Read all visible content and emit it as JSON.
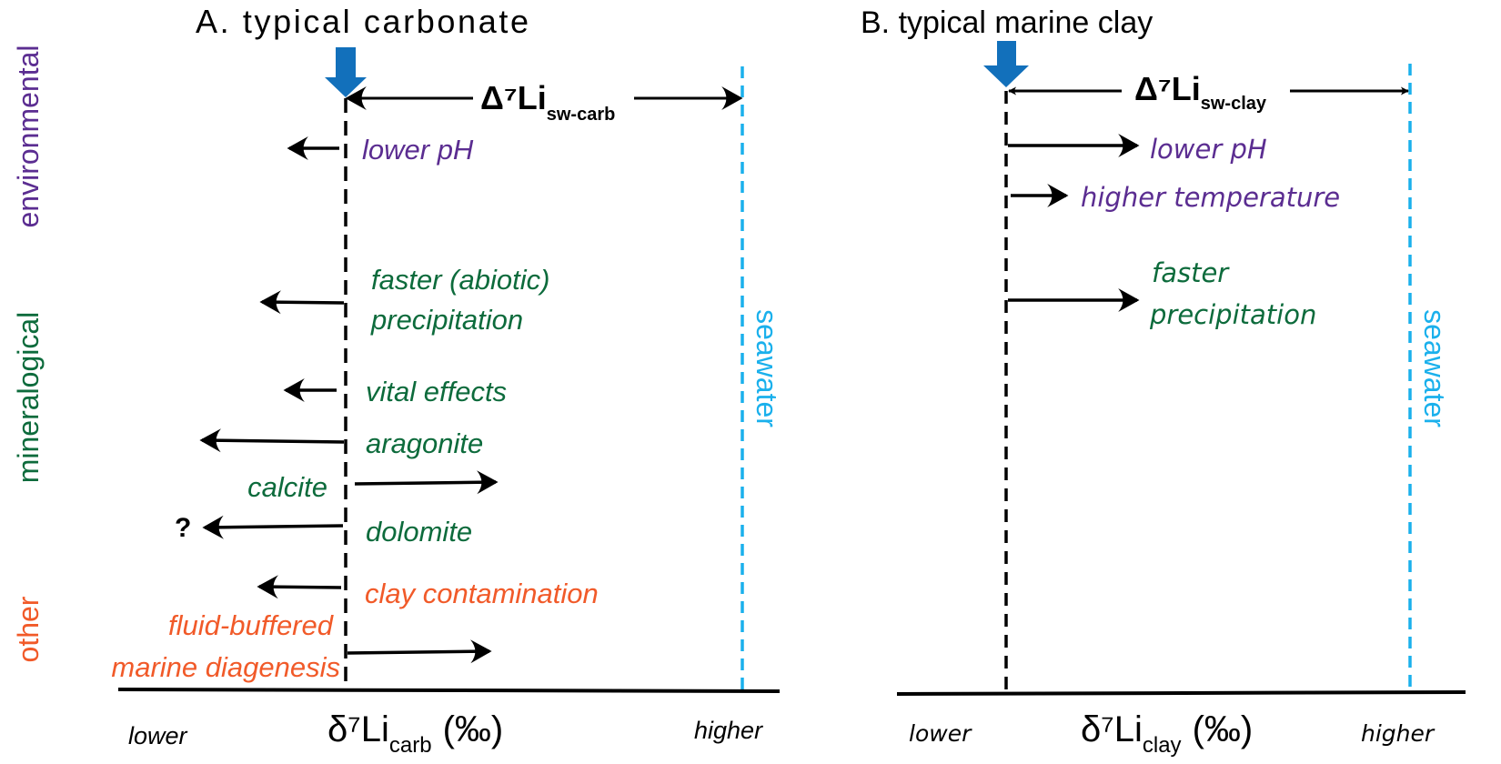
{
  "colors": {
    "environmental": "#5b2d91",
    "mineralogical": "#0d6b3c",
    "other": "#f15a29",
    "seawater": "#1ab0ec",
    "marker": "#1270bb"
  },
  "side_labels": {
    "environmental": "environmental",
    "mineralogical": "mineralogical",
    "other": "other"
  },
  "panel_a": {
    "title": "A. typical carbonate",
    "delta_main": "Δ⁷Li",
    "delta_sub": "sw-carb",
    "seawater": "seawater",
    "effects": {
      "lower_ph": "lower pH",
      "faster_1": "faster (abiotic)",
      "faster_2": "precipitation",
      "vital": "vital effects",
      "aragonite": "aragonite",
      "calcite": "calcite",
      "dolomite": "dolomite",
      "dolomite_q": "?",
      "clay": "clay contamination",
      "fluid_1": "fluid-buffered",
      "fluid_2": "marine diagenesis"
    },
    "axis": {
      "lower": "lower",
      "higher": "higher",
      "label_main": "δ⁷Li",
      "label_sub": "carb",
      "label_unit": "(‰)"
    }
  },
  "panel_b": {
    "title": "B. typical marine clay",
    "delta_main": "Δ⁷Li",
    "delta_sub": "sw-clay",
    "seawater": "seawater",
    "effects": {
      "lower_ph": "lower pH",
      "higher_temp": "higher temperature",
      "faster_1": "faster",
      "faster_2": "precipitation"
    },
    "axis": {
      "lower": "lower",
      "higher": "higher",
      "label_main": "δ⁷Li",
      "label_sub": "clay",
      "label_unit": "(‰)"
    }
  }
}
